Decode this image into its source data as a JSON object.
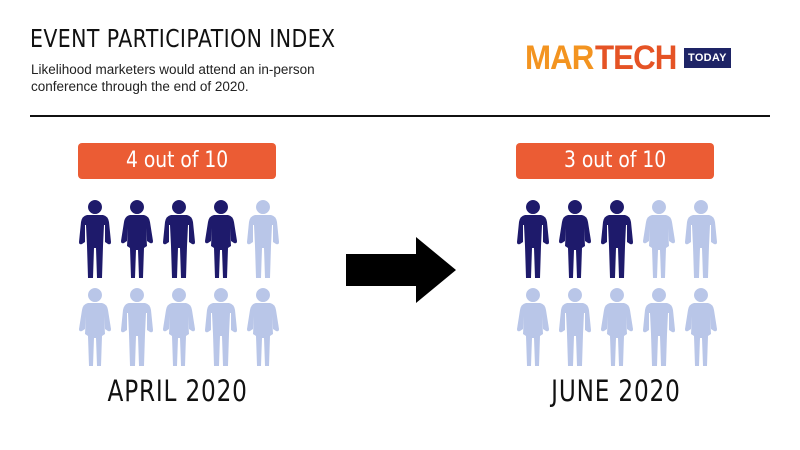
{
  "header": {
    "title": "EVENT PARTICIPATION INDEX",
    "subtitle": "Likelihood marketers would attend an in-person conference through the end of 2020."
  },
  "logo": {
    "part1": "MAR",
    "part2": "TECH",
    "part3": "TODAY"
  },
  "icons": {
    "person": "person-icon",
    "arrow": "right-arrow-icon"
  },
  "colors": {
    "filled": "#1e1a6b",
    "empty": "#b9c6e8",
    "badge": "#eb5c34",
    "logo_orange": "#f39420",
    "logo_red": "#e55325",
    "logo_navy": "#1e2466"
  },
  "chart_data": [
    {
      "type": "pictogram",
      "label": "4 out of 10",
      "category": "APRIL 2020",
      "value": 4,
      "total": 10
    },
    {
      "type": "pictogram",
      "label": "3 out of 10",
      "category": "JUNE 2020",
      "value": 3,
      "total": 10
    }
  ]
}
